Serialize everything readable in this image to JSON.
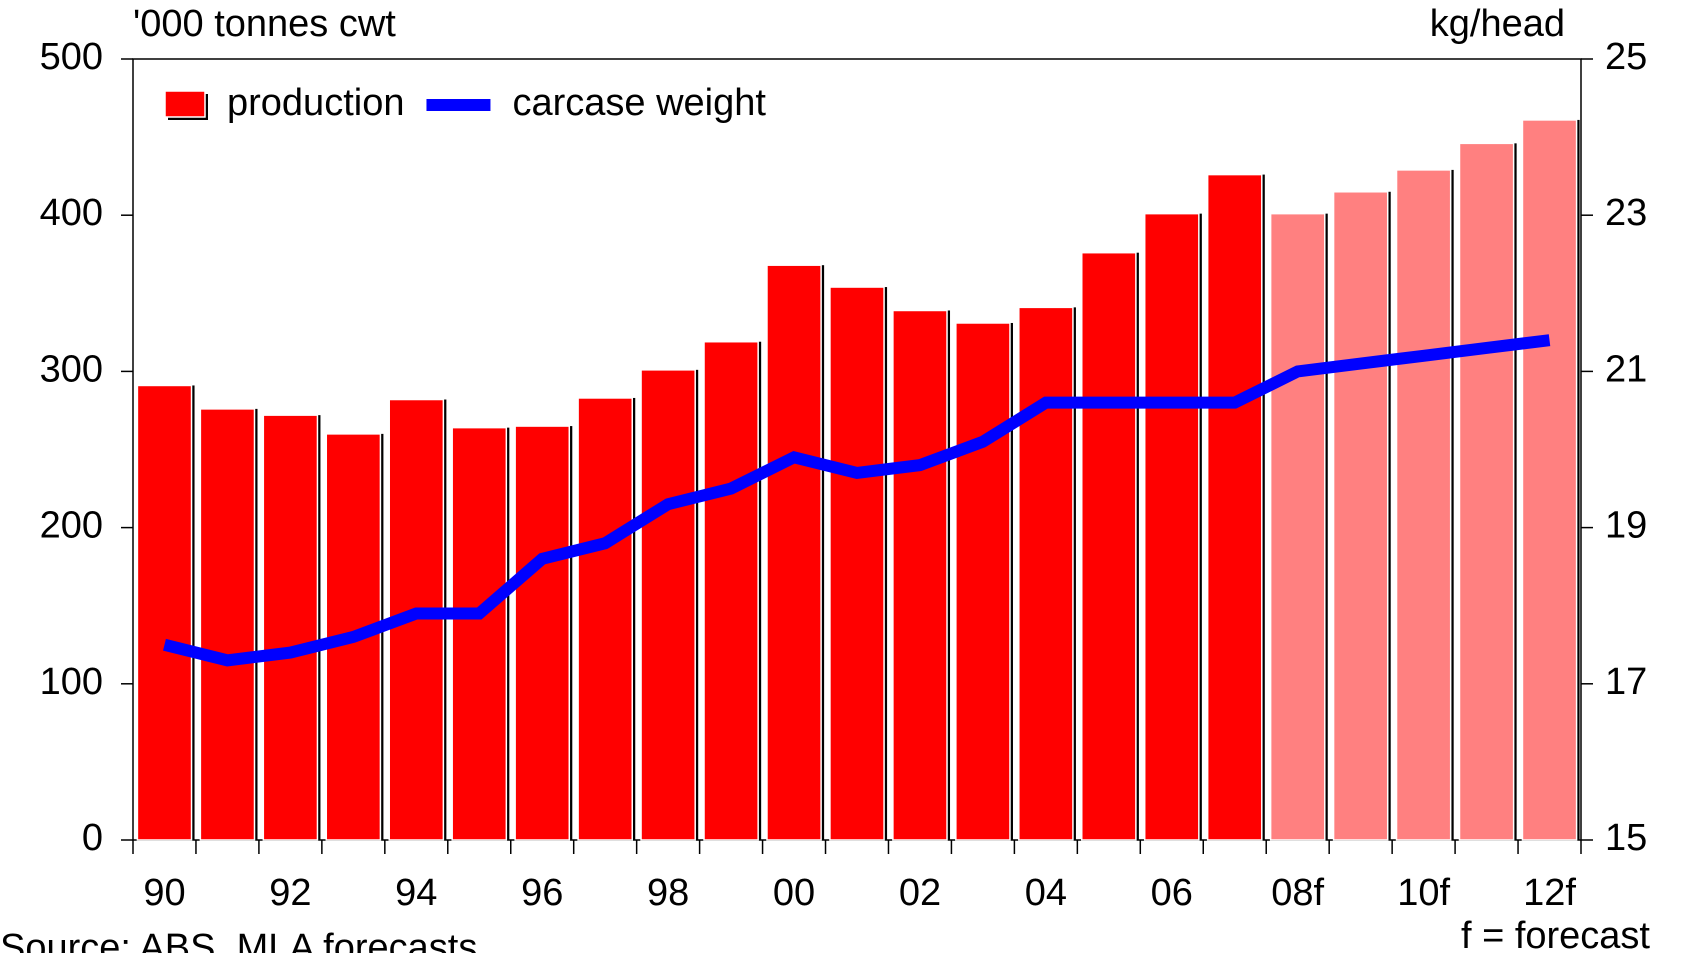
{
  "chart_data": {
    "type": "bar",
    "y_label": "'000 tonnes cwt",
    "y2_label": "kg/head",
    "annotations": [
      "Source: ABS, MLA forecasts",
      "f = forecast"
    ],
    "categories": [
      "90",
      null,
      "92",
      null,
      "94",
      null,
      "96",
      null,
      "98",
      null,
      "00",
      null,
      "02",
      null,
      "04",
      null,
      "06",
      null,
      "08f",
      null,
      "10f",
      null,
      "12f"
    ],
    "series": [
      {
        "name": "production",
        "type": "bar",
        "color": "#ff0000",
        "colors": [
          "#ff0000",
          "#ff0000",
          "#ff0000",
          "#ff0000",
          "#ff0000",
          "#ff0000",
          "#ff0000",
          "#ff0000",
          "#ff0000",
          "#ff0000",
          "#ff0000",
          "#ff0000",
          "#ff0000",
          "#ff0000",
          "#ff0000",
          "#ff0000",
          "#ff0000",
          "#ff0000",
          "#ff8080",
          "#ff8080",
          "#ff8080",
          "#ff8080",
          "#ff8080"
        ],
        "values": [
          291,
          276,
          272,
          260,
          282,
          264,
          265,
          283,
          301,
          319,
          368,
          354,
          339,
          331,
          341,
          376,
          401,
          426,
          401,
          415,
          429,
          446,
          461
        ]
      },
      {
        "name": "carcase weight",
        "type": "line",
        "axis": "y2",
        "color": "#0000ff",
        "values": [
          17.5,
          17.3,
          17.4,
          17.6,
          17.9,
          17.9,
          18.6,
          18.8,
          19.3,
          19.5,
          19.9,
          19.7,
          19.8,
          20.1,
          20.6,
          20.6,
          20.6,
          20.6,
          21.0,
          21.1,
          21.2,
          21.3,
          21.4
        ]
      }
    ],
    "ylim": [
      0,
      500
    ],
    "yticks": [
      0,
      100,
      200,
      300,
      400,
      500
    ],
    "y2lim": [
      15,
      25
    ],
    "y2ticks": [
      15,
      17,
      19,
      21,
      23,
      25
    ],
    "legend": "upper left"
  }
}
